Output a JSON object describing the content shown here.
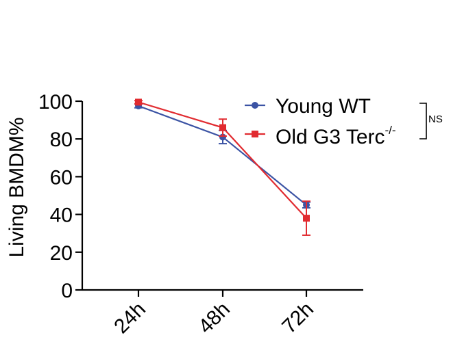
{
  "chart_data": {
    "type": "line",
    "categories": [
      "24h",
      "48h",
      "72h"
    ],
    "ylabel": "Living BMDM%",
    "xlabel": "",
    "ylim": [
      0,
      100
    ],
    "yticks": [
      0,
      20,
      40,
      60,
      80,
      100
    ],
    "series": [
      {
        "name": "Young WT",
        "color": "#3b53a4",
        "marker": "circle",
        "values": [
          97.5,
          81,
          45
        ],
        "errors": [
          1.0,
          3.5,
          1.5
        ]
      },
      {
        "name": "Old G3 Terc",
        "name_superscript": "-/-",
        "color": "#e12b30",
        "marker": "square",
        "values": [
          99.5,
          86,
          38
        ],
        "errors": [
          0.8,
          4.5,
          9.0
        ]
      }
    ],
    "annotation": "NS",
    "legend_position": "top-right"
  }
}
